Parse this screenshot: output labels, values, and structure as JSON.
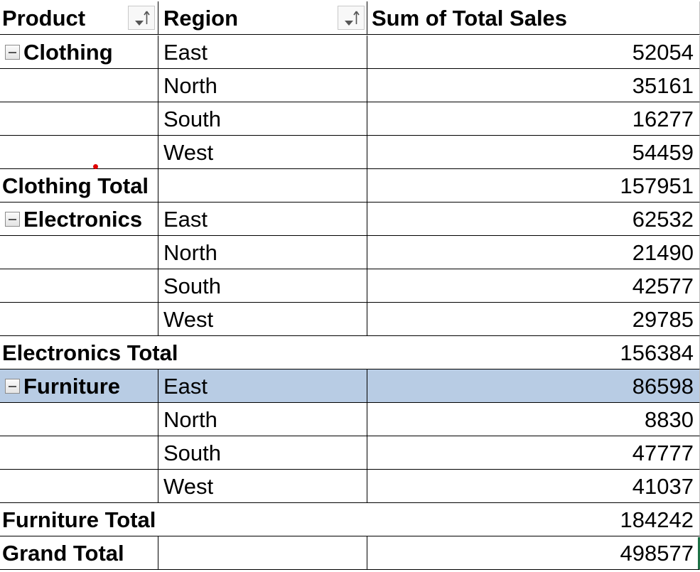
{
  "pivot": {
    "headers": {
      "product": "Product",
      "region": "Region",
      "sum": "Sum of Total Sales"
    },
    "clothing": {
      "label": "Clothing",
      "rows": [
        {
          "region": "East",
          "value": "52054"
        },
        {
          "region": "North",
          "value": "35161"
        },
        {
          "region": "South",
          "value": "16277"
        },
        {
          "region": "West",
          "value": "54459"
        }
      ],
      "total_label": "Clothing Total",
      "total_value": "157951"
    },
    "electronics": {
      "label": "Electronics",
      "rows": [
        {
          "region": "East",
          "value": "62532"
        },
        {
          "region": "North",
          "value": "21490"
        },
        {
          "region": "South",
          "value": "42577"
        },
        {
          "region": "West",
          "value": "29785"
        }
      ],
      "total_label": "Electronics Total",
      "total_value": "156384"
    },
    "furniture": {
      "label": "Furniture",
      "rows": [
        {
          "region": "East",
          "value": "86598"
        },
        {
          "region": "North",
          "value": "8830"
        },
        {
          "region": "South",
          "value": "47777"
        },
        {
          "region": "West",
          "value": "41037"
        }
      ],
      "total_label": "Furniture Total",
      "total_value": "184242"
    },
    "grand_total_label": "Grand Total",
    "grand_total_value": "498577"
  },
  "colors": {
    "selection": "#b8cce4",
    "gridline": "#000000",
    "active_cell_marker": "#1e7145"
  },
  "icons": {
    "collapse": "minus-box-icon",
    "filter": "filter-sort-dropdown-icon"
  }
}
